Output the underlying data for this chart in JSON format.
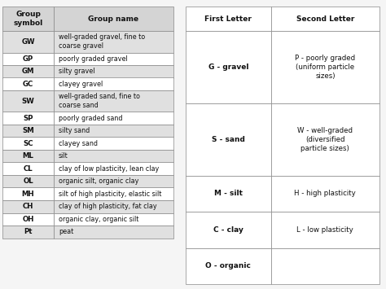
{
  "left_table": {
    "col1_header": "Group\nsymbol",
    "col2_header": "Group name",
    "rows": [
      [
        "GW",
        "well-graded gravel, fine to\ncoarse gravel"
      ],
      [
        "GP",
        "poorly graded gravel"
      ],
      [
        "GM",
        "silty gravel"
      ],
      [
        "GC",
        "clayey gravel"
      ],
      [
        "SW",
        "well-graded sand, fine to\ncoarse sand"
      ],
      [
        "SP",
        "poorly graded sand"
      ],
      [
        "SM",
        "silty sand"
      ],
      [
        "SC",
        "clayey sand"
      ],
      [
        "ML",
        "silt"
      ],
      [
        "CL",
        "clay of low plasticity, lean clay"
      ],
      [
        "OL",
        "organic silt, organic clay"
      ],
      [
        "MH",
        "silt of high plasticity, elastic silt"
      ],
      [
        "CH",
        "clay of high plasticity, fat clay"
      ],
      [
        "OH",
        "organic clay, organic silt"
      ],
      [
        "Pt",
        "peat"
      ]
    ],
    "header_bg": "#d4d4d4",
    "alt_row_color": "#e0e0e0",
    "white_row_color": "#ffffff",
    "border_color": "#888888",
    "text_color": "#111111"
  },
  "right_table": {
    "col1_header": "First Letter",
    "col2_header": "Second Letter",
    "groups": [
      {
        "first": "G - gravel",
        "second": "P - poorly graded\n(uniform particle\nsizes)",
        "spans": 4
      },
      {
        "first": "S - sand",
        "second": "W - well-graded\n(diversified\nparticle sizes)",
        "spans": 4
      },
      {
        "first": "M - silt",
        "second": "H - high plasticity",
        "spans": 2
      },
      {
        "first": "C - clay",
        "second": "L - low plasticity",
        "spans": 2
      },
      {
        "first": "O - organic",
        "second": "",
        "spans": 2
      }
    ],
    "header_bg": "#ffffff",
    "border_color": "#888888",
    "text_color": "#111111"
  },
  "bg_color": "#f5f5f5",
  "fig_width": 4.74,
  "fig_height": 3.55,
  "dpi": 100
}
